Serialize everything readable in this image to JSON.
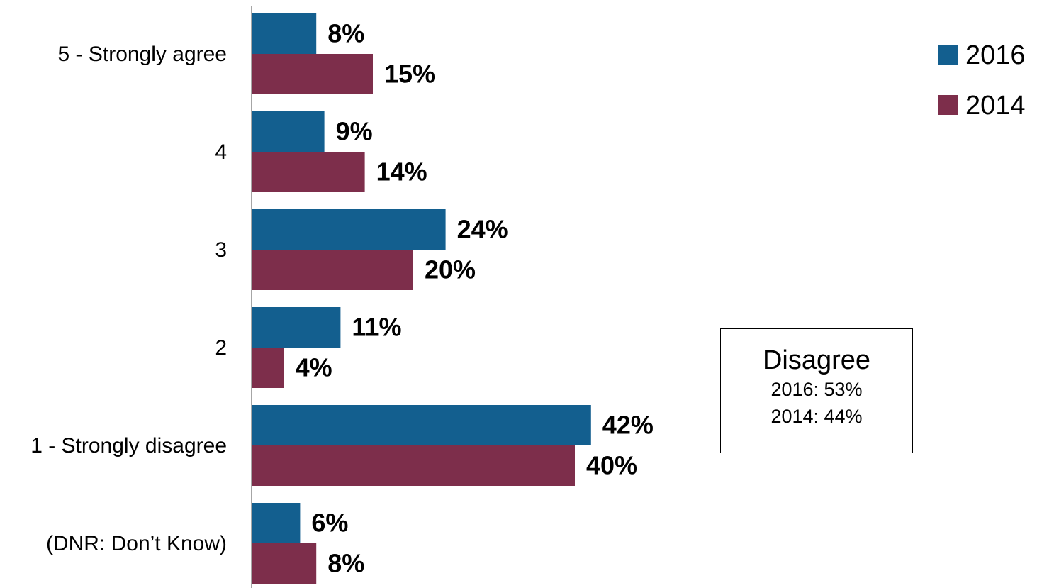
{
  "chart_data": {
    "type": "bar",
    "orientation": "horizontal",
    "categories": [
      "5 - Strongly agree",
      "4",
      "3",
      "2",
      "1 - Strongly disagree",
      "(DNR: Don’t Know)"
    ],
    "series": [
      {
        "name": "2016",
        "color": "#135f8f",
        "values": [
          8,
          9,
          24,
          11,
          42,
          6
        ],
        "labels": [
          "8%",
          "9%",
          "24%",
          "11%",
          "42%",
          "6%"
        ]
      },
      {
        "name": "2014",
        "color": "#7d2e4b",
        "values": [
          15,
          14,
          20,
          4,
          40,
          8
        ],
        "labels": [
          "15%",
          "14%",
          "20%",
          "4%",
          "40%",
          "8%"
        ]
      }
    ],
    "title": "",
    "xlabel": "",
    "ylabel": "",
    "xlim": [
      0,
      100
    ],
    "grid": false,
    "legend": "top-right",
    "annotation": {
      "title": "Disagree",
      "lines": [
        "2016: 53%",
        "2014: 44%"
      ]
    }
  }
}
